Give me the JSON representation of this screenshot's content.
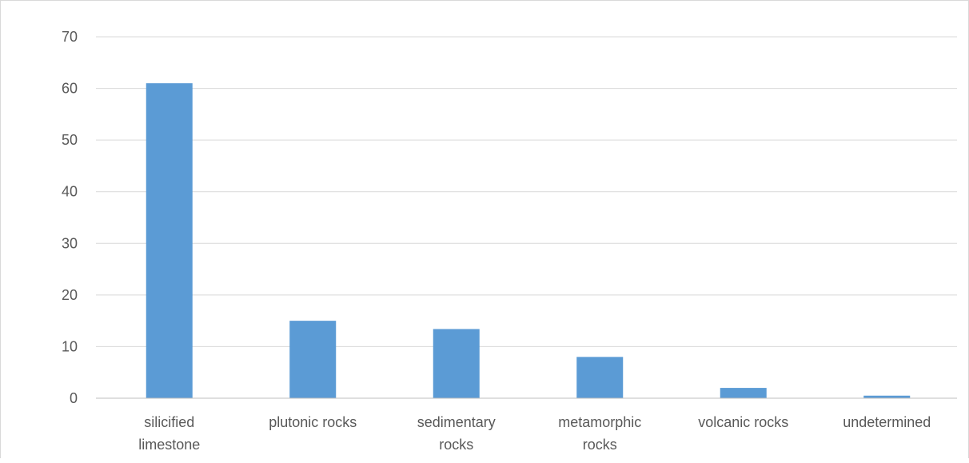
{
  "chart_data": {
    "type": "bar",
    "title": "",
    "xlabel": "",
    "ylabel": "",
    "categories": [
      [
        "silicified",
        "limestone"
      ],
      [
        "plutonic rocks"
      ],
      [
        "sedimentary",
        "rocks"
      ],
      [
        "metamorphic",
        "rocks"
      ],
      [
        "volcanic rocks"
      ],
      [
        "undetermined"
      ]
    ],
    "values": [
      61,
      15,
      13.4,
      8,
      2,
      0.5
    ],
    "yticks": [
      "0",
      "10",
      "20",
      "30",
      "40",
      "50",
      "60",
      "70"
    ],
    "ylim": [
      0,
      70
    ],
    "grid": true,
    "legend": "none",
    "colors": {
      "bar": "#5b9bd5",
      "grid": "#d9d9d9",
      "axis": "#bfbfbf",
      "text": "#595959"
    }
  }
}
